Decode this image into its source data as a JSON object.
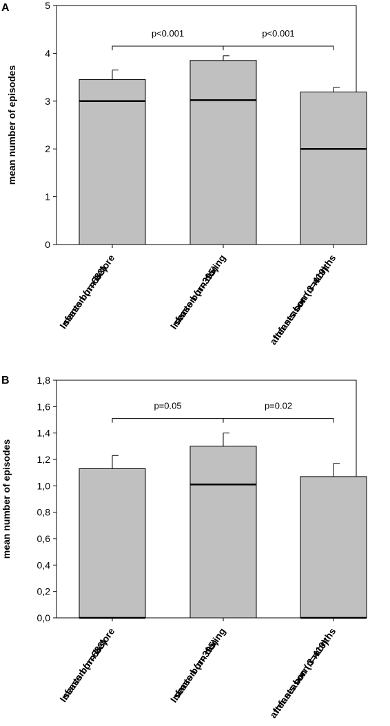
{
  "chart_data": [
    {
      "panel_label": "A",
      "type": "bar",
      "ylabel": "mean number of episodes",
      "ylim": [
        0,
        5
      ],
      "yticks": [
        "0",
        "1",
        "2",
        "3",
        "4",
        "5"
      ],
      "yticks_values": [
        0,
        1,
        2,
        3,
        4,
        5
      ],
      "categories": [
        [
          "Infants born before",
          "season (n=683)"
        ],
        [
          "Infants born during",
          "season (n=395)"
        ],
        [
          "Infants born 3 months",
          "after season (n=419)"
        ]
      ],
      "values": [
        3.45,
        3.85,
        3.19
      ],
      "error_upper": [
        3.65,
        3.95,
        3.29
      ],
      "medians": [
        3.0,
        3.02,
        2.0
      ],
      "bar_color": "#c0c0c0",
      "annotations": [
        {
          "from": 0,
          "to": 1,
          "text": "p<0.001"
        },
        {
          "from": 1,
          "to": 2,
          "text": "p<0.001"
        }
      ],
      "bracket_y": 4.15
    },
    {
      "panel_label": "B",
      "type": "bar",
      "ylabel": "mean number of episodes",
      "ylim": [
        0,
        1.8
      ],
      "yticks": [
        "0,0",
        "0,2",
        "0,4",
        "0,6",
        "0,8",
        "1,0",
        "1,2",
        "1,4",
        "1,6",
        "1,8"
      ],
      "yticks_values": [
        0,
        0.2,
        0.4,
        0.6,
        0.8,
        1.0,
        1.2,
        1.4,
        1.6,
        1.8
      ],
      "categories": [
        [
          "Infants born before",
          "season (n=683)"
        ],
        [
          "Infants born during",
          "season (n=395)"
        ],
        [
          "Infants born 3 months",
          "after season (n=419)"
        ]
      ],
      "values": [
        1.13,
        1.3,
        1.07
      ],
      "error_upper": [
        1.23,
        1.4,
        1.17
      ],
      "medians": [
        0.0,
        1.01,
        0.0
      ],
      "bar_color": "#c0c0c0",
      "annotations": [
        {
          "from": 0,
          "to": 1,
          "text": "p=0.05"
        },
        {
          "from": 1,
          "to": 2,
          "text": "p=0.02"
        }
      ],
      "bracket_y": 1.51
    }
  ]
}
